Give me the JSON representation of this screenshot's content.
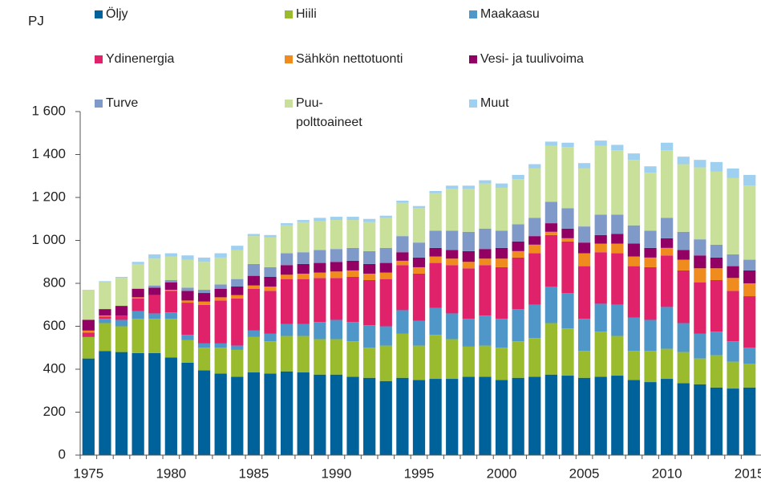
{
  "chart_data": {
    "type": "stacked_bar",
    "y_unit_label": "PJ",
    "categories": [
      "1975",
      null,
      null,
      null,
      null,
      "1980",
      null,
      null,
      null,
      null,
      "1985",
      null,
      null,
      null,
      null,
      "1990",
      null,
      null,
      null,
      null,
      "1995",
      null,
      null,
      null,
      null,
      "2000",
      null,
      null,
      null,
      null,
      "2005",
      null,
      null,
      null,
      null,
      "2010",
      null,
      null,
      null,
      null,
      "2015"
    ],
    "series": [
      {
        "name": "Öljy",
        "color": "#00629b",
        "values": [
          450,
          485,
          480,
          475,
          475,
          455,
          430,
          395,
          380,
          365,
          385,
          380,
          390,
          385,
          375,
          375,
          365,
          360,
          345,
          360,
          350,
          355,
          355,
          365,
          365,
          350,
          360,
          365,
          375,
          370,
          360,
          365,
          370,
          350,
          340,
          355,
          335,
          330,
          315,
          310,
          315
        ]
      },
      {
        "name": "Hiili",
        "color": "#9bbb2e",
        "values": [
          100,
          130,
          120,
          160,
          160,
          180,
          105,
          105,
          120,
          125,
          165,
          150,
          165,
          170,
          165,
          165,
          165,
          140,
          165,
          205,
          160,
          205,
          185,
          140,
          145,
          150,
          170,
          180,
          240,
          220,
          125,
          210,
          185,
          135,
          145,
          140,
          145,
          120,
          150,
          125,
          110
        ]
      },
      {
        "name": "Maakaasu",
        "color": "#4f97c9",
        "values": [
          0,
          20,
          30,
          35,
          25,
          30,
          25,
          20,
          20,
          20,
          30,
          35,
          55,
          55,
          80,
          90,
          90,
          105,
          90,
          110,
          115,
          125,
          120,
          130,
          140,
          135,
          150,
          155,
          170,
          165,
          150,
          130,
          145,
          155,
          145,
          195,
          135,
          115,
          110,
          95,
          75
        ]
      },
      {
        "name": "Ydinenergia",
        "color": "#e0226a",
        "values": [
          20,
          10,
          20,
          60,
          85,
          100,
          150,
          180,
          200,
          220,
          195,
          200,
          210,
          210,
          205,
          195,
          210,
          210,
          220,
          210,
          220,
          210,
          225,
          235,
          235,
          240,
          240,
          240,
          240,
          240,
          245,
          240,
          240,
          240,
          245,
          240,
          245,
          240,
          240,
          235,
          240
        ]
      },
      {
        "name": "Sähkön nettotuonti",
        "color": "#f08c1e",
        "values": [
          10,
          5,
          0,
          5,
          0,
          5,
          10,
          15,
          15,
          15,
          15,
          20,
          20,
          25,
          25,
          30,
          30,
          30,
          30,
          20,
          30,
          30,
          30,
          30,
          30,
          40,
          30,
          40,
          15,
          15,
          60,
          40,
          45,
          45,
          45,
          35,
          50,
          65,
          55,
          60,
          60
        ]
      },
      {
        "name": "Vesi- ja tuulivoima",
        "color": "#920063",
        "values": [
          50,
          30,
          45,
          40,
          35,
          35,
          45,
          40,
          40,
          40,
          45,
          45,
          45,
          45,
          45,
          45,
          45,
          45,
          45,
          40,
          45,
          40,
          40,
          50,
          45,
          50,
          45,
          40,
          40,
          45,
          50,
          40,
          45,
          60,
          45,
          45,
          45,
          60,
          50,
          55,
          60
        ]
      },
      {
        "name": "Turve",
        "color": "#7f9ac9",
        "values": [
          0,
          0,
          0,
          0,
          10,
          10,
          15,
          15,
          20,
          35,
          55,
          45,
          55,
          55,
          60,
          60,
          60,
          60,
          70,
          75,
          70,
          80,
          90,
          90,
          95,
          80,
          80,
          85,
          100,
          95,
          75,
          95,
          90,
          85,
          80,
          95,
          85,
          75,
          60,
          55,
          50
        ]
      },
      {
        "name": "Puu-\npolttoaineet",
        "color": "#c8e09a",
        "values": [
          140,
          125,
          130,
          115,
          125,
          110,
          130,
          130,
          125,
          135,
          130,
          140,
          130,
          140,
          135,
          135,
          130,
          135,
          140,
          155,
          160,
          175,
          195,
          200,
          210,
          200,
          210,
          230,
          260,
          285,
          270,
          320,
          300,
          305,
          270,
          315,
          315,
          335,
          340,
          355,
          345
        ]
      },
      {
        "name": "Muut",
        "color": "#9fd0ef",
        "values": [
          0,
          5,
          5,
          10,
          20,
          15,
          20,
          20,
          20,
          20,
          10,
          10,
          10,
          10,
          15,
          15,
          15,
          15,
          10,
          10,
          10,
          10,
          15,
          15,
          15,
          20,
          20,
          20,
          20,
          20,
          25,
          25,
          25,
          30,
          30,
          35,
          35,
          35,
          45,
          45,
          50
        ]
      }
    ],
    "ylim": [
      0,
      1600
    ],
    "yticks": [
      0,
      200,
      400,
      600,
      800,
      {
        "value": 1000,
        "label": "1 000"
      },
      {
        "value": 1200,
        "label": "1 200"
      },
      {
        "value": 1400,
        "label": "1 400"
      },
      {
        "value": 1600,
        "label": "1 600"
      }
    ],
    "grid": false
  }
}
